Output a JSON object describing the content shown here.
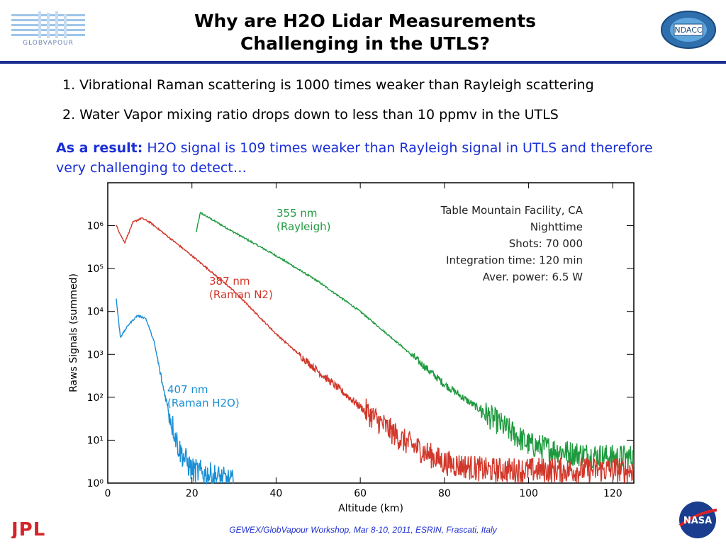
{
  "slide": {
    "title_line1": "Why are H2O Lidar Measurements",
    "title_line2": "Challenging in the UTLS?",
    "point1": "1. Vibrational Raman scattering is 1000 times weaker than Rayleigh scattering",
    "point2": "2. Water Vapor mixing ratio drops down to less than 10 ppmv in the UTLS",
    "result_label": "As a result:",
    "result_text": " H2O signal is 109 times weaker than Rayleigh signal in UTLS and therefore very challenging to detect…",
    "footer": "GEWEX/GlobVapour Workshop, Mar 8-10, 2011, ESRIN, Frascati, Italy",
    "logos": {
      "left_top": "GLOBVAPOUR",
      "right_top": "NDACC",
      "left_bottom": "JPL",
      "right_bottom": "NASA"
    }
  },
  "colors": {
    "title_rule": "#1c2f92",
    "result_text": "#1a2fd6",
    "footer_text": "#1f2fd0",
    "rayleigh": "#1e9a3e",
    "raman_n2": "#d1372a",
    "raman_h2o": "#1a8fd6"
  },
  "chart_data": {
    "type": "line",
    "xlabel": "Altitude (km)",
    "ylabel": "Raws Signals (summed)",
    "xlim": [
      0,
      125
    ],
    "ylim": [
      1,
      10000000
    ],
    "yscale": "log",
    "x_ticks": [
      "0",
      "20",
      "40",
      "60",
      "80",
      "100",
      "120"
    ],
    "y_ticks": [
      "10⁰",
      "10¹",
      "10²",
      "10³",
      "10⁴",
      "10⁵",
      "10⁶"
    ],
    "info_box": [
      "Table Mountain Facility, CA",
      "Nighttime",
      "Shots: 70 000",
      "Integration time: 120 min",
      "Aver. power: 6.5 W"
    ],
    "series": [
      {
        "name": "355 nm (Rayleigh)",
        "label_lines": [
          "355 nm",
          "(Rayleigh)"
        ],
        "color": "#1e9a3e",
        "x": [
          21,
          22,
          30,
          40,
          50,
          60,
          70,
          80,
          90,
          100,
          110,
          120,
          125
        ],
        "y": [
          700000,
          2000000,
          700000,
          200000,
          50000,
          10000,
          1500,
          200,
          40,
          8,
          5,
          4,
          4
        ]
      },
      {
        "name": "387 nm (Raman N2)",
        "label_lines": [
          "387 nm",
          "(Raman N2)"
        ],
        "color": "#d1372a",
        "x": [
          2,
          4,
          6,
          8,
          10,
          20,
          30,
          40,
          50,
          60,
          70,
          80,
          90,
          100,
          110,
          120,
          125
        ],
        "y": [
          1000000,
          400000,
          1200000,
          1500000,
          1200000,
          200000,
          30000,
          3000,
          400,
          60,
          10,
          3,
          2,
          2,
          2,
          2,
          2
        ]
      },
      {
        "name": "407 nm (Raman H2O)",
        "label_lines": [
          "407 nm",
          "(Raman H2O)"
        ],
        "color": "#1a8fd6",
        "x": [
          2,
          3,
          5,
          7,
          9,
          11,
          13,
          15,
          17,
          20,
          25,
          30
        ],
        "y": [
          20000,
          2500,
          5000,
          8000,
          7000,
          2000,
          200,
          30,
          6,
          2,
          1.5,
          1
        ]
      }
    ]
  }
}
